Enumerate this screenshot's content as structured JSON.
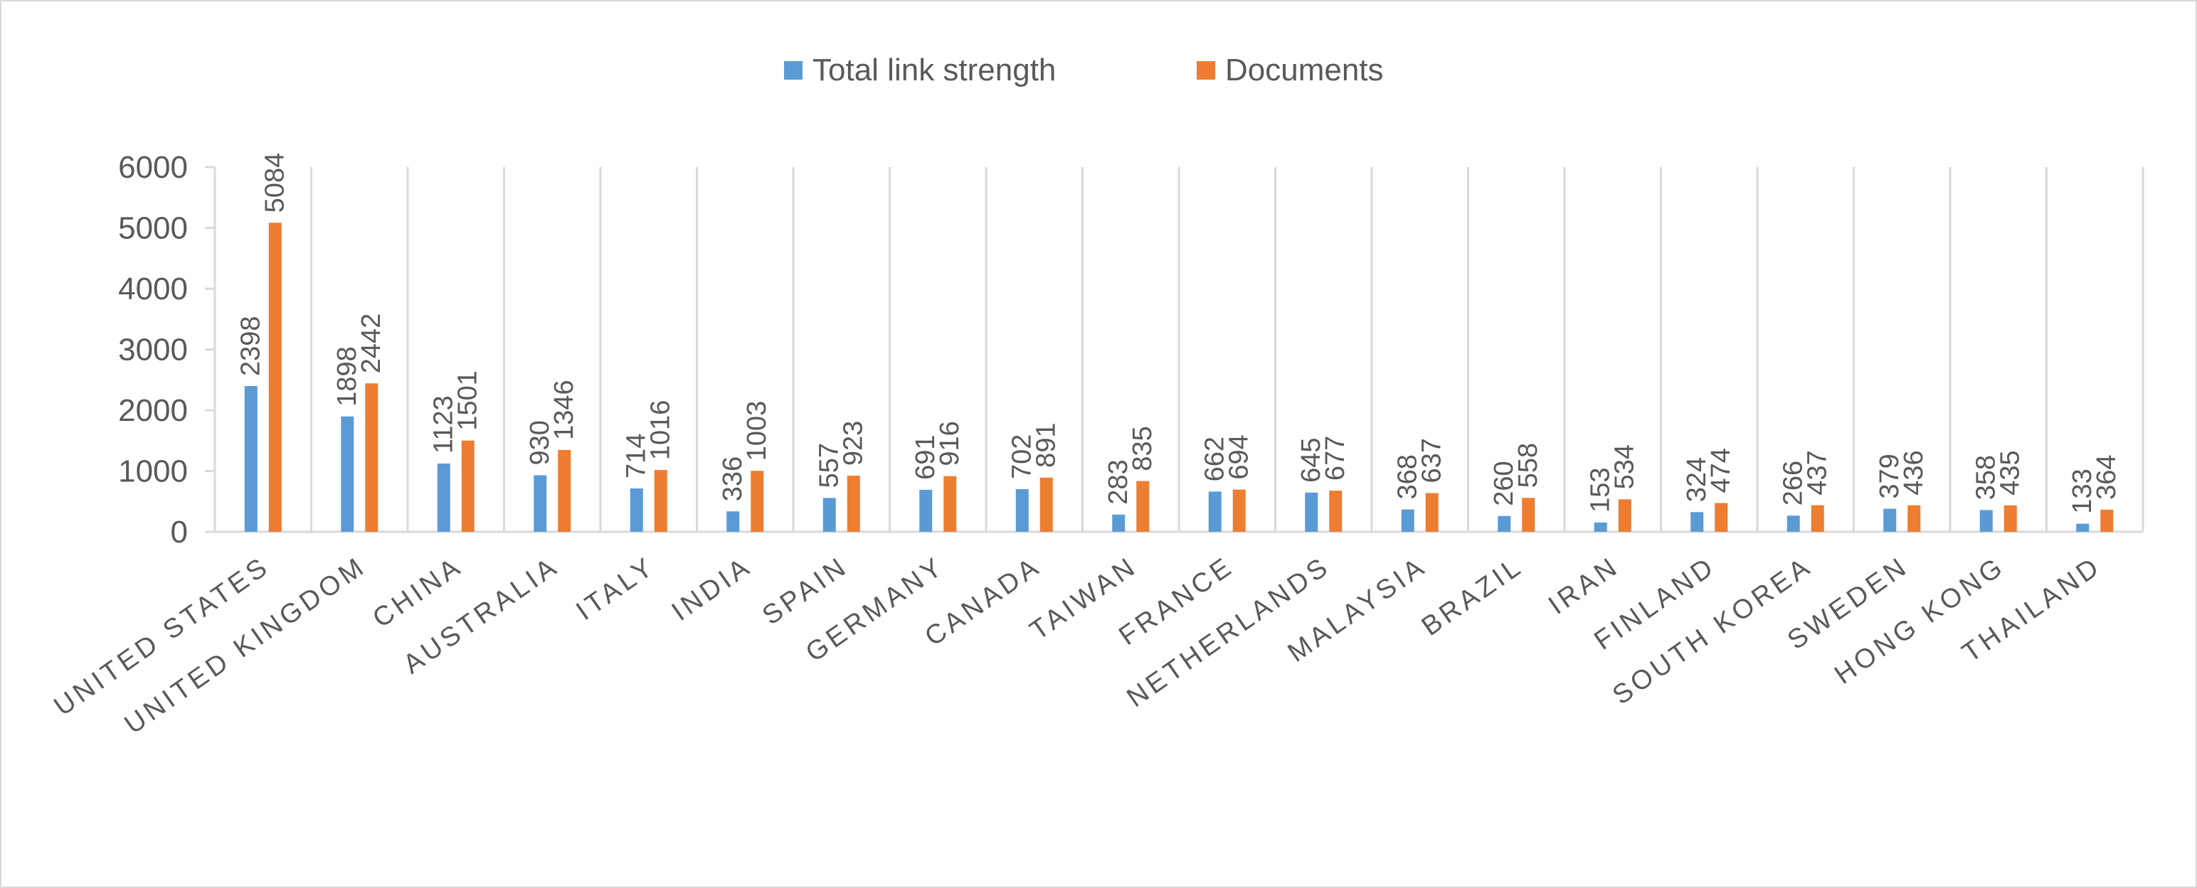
{
  "chart_data": {
    "type": "bar",
    "title": "",
    "xlabel": "",
    "ylabel": "",
    "ylim": [
      0,
      6000
    ],
    "yticks": [
      0,
      1000,
      2000,
      3000,
      4000,
      5000,
      6000
    ],
    "grid": "vertical category separators",
    "legend_position": "top",
    "categories": [
      "UNITED STATES",
      "UNITED KINGDOM",
      "CHINA",
      "AUSTRALIA",
      "ITALY",
      "INDIA",
      "SPAIN",
      "GERMANY",
      "CANADA",
      "TAIWAN",
      "FRANCE",
      "NETHERLANDS",
      "MALAYSIA",
      "BRAZIL",
      "IRAN",
      "FINLAND",
      "SOUTH KOREA",
      "SWEDEN",
      "HONG KONG",
      "THAILAND"
    ],
    "series": [
      {
        "name": "Total link strength",
        "color": "#5b9bd5",
        "values": [
          2398,
          1898,
          1123,
          930,
          714,
          336,
          557,
          691,
          702,
          283,
          662,
          645,
          368,
          260,
          153,
          324,
          266,
          379,
          358,
          133
        ]
      },
      {
        "name": "Documents",
        "color": "#ed7d31",
        "values": [
          5084,
          2442,
          1501,
          1346,
          1016,
          1003,
          923,
          916,
          891,
          835,
          694,
          677,
          637,
          558,
          534,
          474,
          437,
          436,
          435,
          364
        ]
      }
    ]
  }
}
